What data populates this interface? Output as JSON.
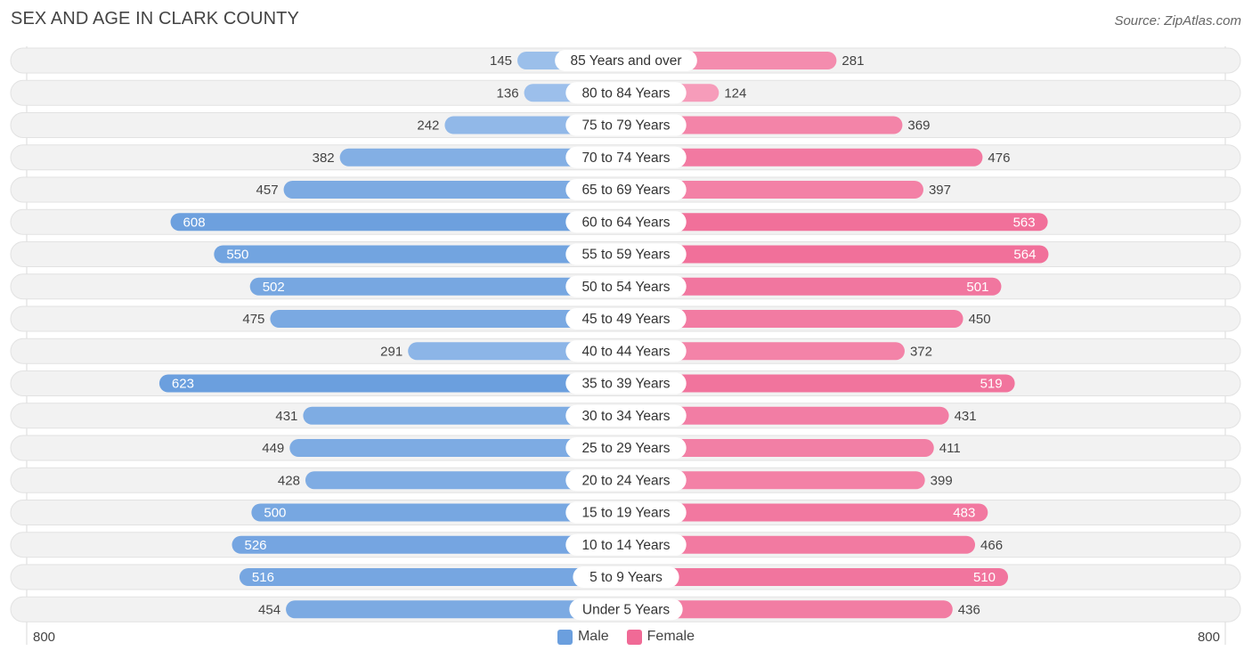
{
  "header": {
    "title": "SEX AND AGE IN CLARK COUNTY",
    "source": "Source: ZipAtlas.com"
  },
  "colors": {
    "male": "#6b9fde",
    "male_light": "#a9c8ee",
    "female": "#f06a96",
    "female_light": "#f7a8c2"
  },
  "chart_data": {
    "type": "bar",
    "orientation": "horizontal-diverging",
    "title": "SEX AND AGE IN CLARK COUNTY",
    "xlim": [
      -800,
      800
    ],
    "axis_labels": {
      "left": "800",
      "right": "800"
    },
    "legend": [
      {
        "name": "Male",
        "key": "male"
      },
      {
        "name": "Female",
        "key": "female"
      }
    ],
    "categories": [
      "85 Years and over",
      "80 to 84 Years",
      "75 to 79 Years",
      "70 to 74 Years",
      "65 to 69 Years",
      "60 to 64 Years",
      "55 to 59 Years",
      "50 to 54 Years",
      "45 to 49 Years",
      "40 to 44 Years",
      "35 to 39 Years",
      "30 to 34 Years",
      "25 to 29 Years",
      "20 to 24 Years",
      "15 to 19 Years",
      "10 to 14 Years",
      "5 to 9 Years",
      "Under 5 Years"
    ],
    "series": [
      {
        "name": "Male",
        "values": [
          145,
          136,
          242,
          382,
          457,
          608,
          550,
          502,
          475,
          291,
          623,
          431,
          449,
          428,
          500,
          526,
          516,
          454
        ]
      },
      {
        "name": "Female",
        "values": [
          281,
          124,
          369,
          476,
          397,
          563,
          564,
          501,
          450,
          372,
          519,
          431,
          411,
          399,
          483,
          466,
          510,
          436
        ]
      }
    ]
  }
}
